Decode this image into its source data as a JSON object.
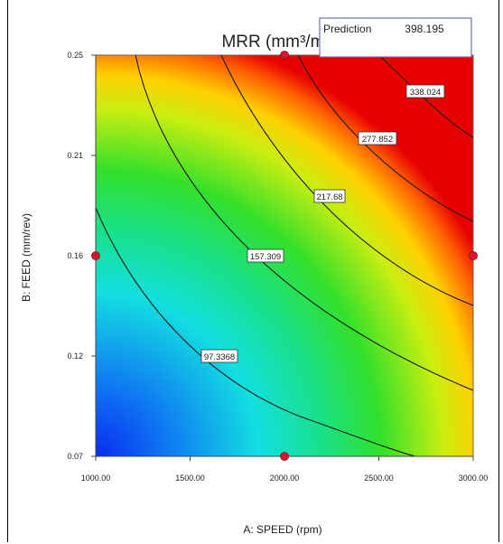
{
  "chart_data": {
    "type": "contour",
    "title": "MRR (mm³/min)",
    "xlabel": "A: SPEED (rpm)",
    "ylabel": "B: FEED (mm/rev)",
    "xlim": [
      1000,
      3000
    ],
    "ylim": [
      0.07,
      0.25
    ],
    "x_ticks": [
      "1000.00",
      "1500.00",
      "2000.00",
      "2500.00",
      "3000.00"
    ],
    "y_ticks": [
      "0.07",
      "0.12",
      "0.16",
      "0.21",
      "0.25"
    ],
    "contour_levels": [
      "97.3368",
      "157.309",
      "217.68",
      "277.852",
      "338.024"
    ],
    "design_points": [
      {
        "x": 2000,
        "y": 0.25
      },
      {
        "x": 1000,
        "y": 0.16
      },
      {
        "x": 3000,
        "y": 0.16
      },
      {
        "x": 2000,
        "y": 0.07
      }
    ],
    "prediction": {
      "label": "Prediction",
      "value": "398.195"
    },
    "colormap": [
      "#0000ff",
      "#00ffff",
      "#00ff00",
      "#ffff00",
      "#ff0000"
    ]
  }
}
